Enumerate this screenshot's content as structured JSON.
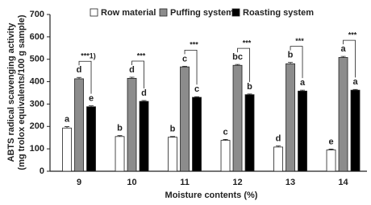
{
  "chart_data": {
    "type": "bar",
    "y_label_lines": [
      "ABTS radical scavenging activity",
      "(mg trolox equivalents/100 g sample)"
    ],
    "x_label": "Moisture contents (%)",
    "categories": [
      "9",
      "10",
      "11",
      "12",
      "13",
      "14"
    ],
    "series": [
      {
        "name": "Row material",
        "color": "#ffffff",
        "values": [
          193,
          155,
          152,
          138,
          108,
          95
        ],
        "errors": [
          6,
          4,
          3,
          4,
          5,
          4
        ],
        "letters": [
          "a",
          "b",
          "b",
          "c",
          "d",
          "e"
        ]
      },
      {
        "name": "Puffing system",
        "color": "#8c8c8c",
        "values": [
          413,
          415,
          466,
          473,
          480,
          508
        ],
        "errors": [
          6,
          5,
          3,
          4,
          6,
          5
        ],
        "letters": [
          "d",
          "d",
          "c",
          "bc",
          "b",
          "a"
        ]
      },
      {
        "name": "Roasting system",
        "color": "#000000",
        "values": [
          288,
          312,
          330,
          342,
          358,
          362
        ],
        "errors": [
          4,
          4,
          3,
          3,
          4,
          3
        ],
        "letters": [
          "e",
          "d",
          "c",
          "b",
          "a",
          "a"
        ]
      }
    ],
    "significance": [
      "***1)",
      "***",
      "***",
      "***",
      "***",
      "***"
    ],
    "ylim": [
      0,
      700
    ],
    "yticks": [
      0,
      100,
      200,
      300,
      400,
      500,
      600,
      700
    ],
    "legend": "top"
  }
}
